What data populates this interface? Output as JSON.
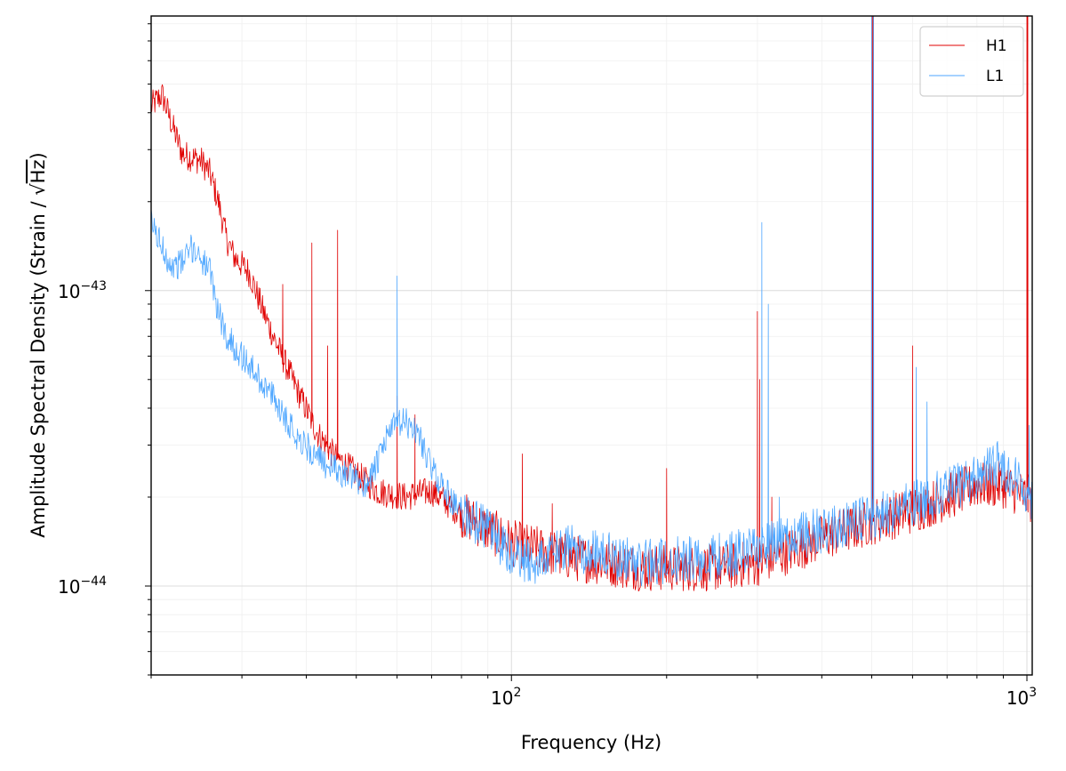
{
  "chart_data": {
    "type": "line",
    "xlabel": "Frequency (Hz)",
    "ylabel_main": "Amplitude Spectral Density (Strain / ",
    "ylabel_root": "√",
    "ylabel_rad": "Hz",
    "ylabel_close": ")",
    "xscale": "log",
    "yscale": "log",
    "xlim": [
      20,
      1024
    ],
    "ylim": [
      5e-45,
      8.5e-43
    ],
    "grid": true,
    "legend_position": "top-right",
    "x_ticks": [
      {
        "value": 100,
        "base": "10",
        "exp": "2"
      },
      {
        "value": 1000,
        "base": "10",
        "exp": "3"
      }
    ],
    "y_ticks": [
      {
        "value": 1e-43,
        "base": "10",
        "exp": "−43"
      },
      {
        "value": 1e-44,
        "base": "10",
        "exp": "−44"
      }
    ],
    "series": [
      {
        "name": "H1",
        "color": "#e00000",
        "noise": 0.1,
        "base": [
          [
            20,
            4.2e-43
          ],
          [
            21,
            4.6e-43
          ],
          [
            22,
            3.6e-43
          ],
          [
            23,
            2.9e-43
          ],
          [
            25,
            2.75e-43
          ],
          [
            26,
            2.5e-43
          ],
          [
            27,
            2e-43
          ],
          [
            28,
            1.5e-43
          ],
          [
            29,
            1.3e-43
          ],
          [
            31,
            1.15e-43
          ],
          [
            33,
            8.5e-44
          ],
          [
            35,
            6.6e-44
          ],
          [
            38,
            4.8e-44
          ],
          [
            42,
            3.3e-44
          ],
          [
            45,
            2.8e-44
          ],
          [
            50,
            2.4e-44
          ],
          [
            55,
            2.1e-44
          ],
          [
            62,
            2e-44
          ],
          [
            70,
            2.1e-44
          ],
          [
            80,
            1.75e-44
          ],
          [
            100,
            1.4e-44
          ],
          [
            130,
            1.25e-44
          ],
          [
            180,
            1.15e-44
          ],
          [
            250,
            1.15e-44
          ],
          [
            300,
            1.2e-44
          ],
          [
            400,
            1.45e-44
          ],
          [
            500,
            1.65e-44
          ],
          [
            600,
            1.8e-44
          ],
          [
            700,
            2e-44
          ],
          [
            800,
            2.2e-44
          ],
          [
            900,
            2.2e-44
          ],
          [
            1000,
            2e-44
          ],
          [
            1024,
            1.95e-44
          ]
        ],
        "spikes": [
          [
            36,
            1.05e-43
          ],
          [
            41,
            1.45e-43
          ],
          [
            44,
            6.5e-44
          ],
          [
            46,
            1.6e-43
          ],
          [
            60,
            4.4e-44
          ],
          [
            65,
            3.8e-44
          ],
          [
            105,
            2.8e-44
          ],
          [
            120,
            1.9e-44
          ],
          [
            200,
            2.5e-44
          ],
          [
            300,
            8.5e-44
          ],
          [
            303,
            5e-44
          ],
          [
            320,
            2e-44
          ],
          [
            500,
            8.5e-43
          ],
          [
            502,
            8.5e-43
          ],
          [
            504,
            8.5e-43
          ],
          [
            600,
            6.5e-44
          ],
          [
            1000,
            8.5e-43
          ],
          [
            1002,
            8.5e-43
          ],
          [
            1004,
            8.5e-43
          ]
        ]
      },
      {
        "name": "L1",
        "color": "#4da6ff",
        "noise": 0.1,
        "base": [
          [
            20,
            1.7e-43
          ],
          [
            21,
            1.4e-43
          ],
          [
            22,
            1.2e-43
          ],
          [
            23,
            1.25e-43
          ],
          [
            24,
            1.4e-43
          ],
          [
            25,
            1.3e-43
          ],
          [
            26,
            1.15e-43
          ],
          [
            27,
            8.5e-44
          ],
          [
            28,
            7e-44
          ],
          [
            30,
            6e-44
          ],
          [
            32,
            5.2e-44
          ],
          [
            35,
            4.2e-44
          ],
          [
            38,
            3.3e-44
          ],
          [
            42,
            2.7e-44
          ],
          [
            47,
            2.4e-44
          ],
          [
            52,
            2.2e-44
          ],
          [
            55,
            2.6e-44
          ],
          [
            58,
            3.4e-44
          ],
          [
            62,
            3.6e-44
          ],
          [
            66,
            3.3e-44
          ],
          [
            70,
            2.5e-44
          ],
          [
            78,
            1.85e-44
          ],
          [
            90,
            1.55e-44
          ],
          [
            100,
            1.25e-44
          ],
          [
            110,
            1.2e-44
          ],
          [
            130,
            1.35e-44
          ],
          [
            180,
            1.2e-44
          ],
          [
            250,
            1.25e-44
          ],
          [
            300,
            1.35e-44
          ],
          [
            400,
            1.55e-44
          ],
          [
            500,
            1.7e-44
          ],
          [
            600,
            1.9e-44
          ],
          [
            700,
            2.1e-44
          ],
          [
            800,
            2.35e-44
          ],
          [
            880,
            2.6e-44
          ],
          [
            950,
            2.3e-44
          ],
          [
            1024,
            2e-44
          ]
        ],
        "spikes": [
          [
            60,
            1.12e-43
          ],
          [
            306,
            1.7e-43
          ],
          [
            315,
            9e-44
          ],
          [
            331,
            2e-44
          ],
          [
            500,
            8.5e-43
          ],
          [
            504,
            8.5e-43
          ],
          [
            610,
            5.5e-44
          ],
          [
            640,
            4.2e-44
          ],
          [
            1010,
            3.5e-44
          ]
        ]
      }
    ]
  }
}
